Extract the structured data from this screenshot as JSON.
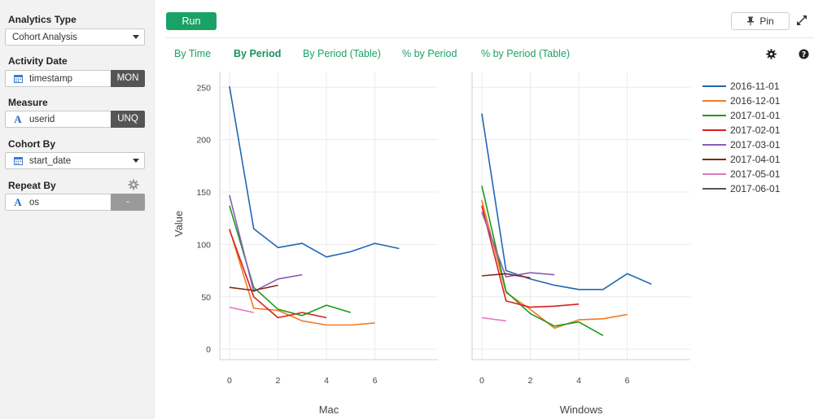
{
  "sidebar": {
    "analytics_type": {
      "label": "Analytics Type",
      "value": "Cohort Analysis"
    },
    "activity_date": {
      "label": "Activity Date",
      "value": "timestamp",
      "tag": "MON"
    },
    "measure": {
      "label": "Measure",
      "value": "userid",
      "tag": "UNQ"
    },
    "cohort_by": {
      "label": "Cohort By",
      "value": "start_date"
    },
    "repeat_by": {
      "label": "Repeat By",
      "value": "os",
      "tag": "-"
    }
  },
  "toolbar": {
    "run_label": "Run",
    "pin_label": "Pin"
  },
  "tabs": [
    {
      "label": "By Time",
      "active": false
    },
    {
      "label": "By Period",
      "active": true
    },
    {
      "label": "By Period (Table)",
      "active": false
    },
    {
      "label": "% by Period",
      "active": false
    },
    {
      "label": "% by Period (Table)",
      "active": false
    }
  ],
  "chart_data": {
    "type": "line",
    "ylabel": "Value",
    "ylim": [
      -10,
      265
    ],
    "xlim": [
      -0.4,
      8.6
    ],
    "x_ticks": [
      0,
      2,
      4,
      6
    ],
    "y_ticks": [
      0,
      50,
      100,
      150,
      200,
      250
    ],
    "grid": true,
    "legend_position": "right",
    "series": [
      {
        "name": "2016-11-01",
        "color": "#1f67b4"
      },
      {
        "name": "2016-12-01",
        "color": "#f47a1f"
      },
      {
        "name": "2017-01-01",
        "color": "#1b9a1b"
      },
      {
        "name": "2017-02-01",
        "color": "#d62020"
      },
      {
        "name": "2017-03-01",
        "color": "#8a5cb8"
      },
      {
        "name": "2017-04-01",
        "color": "#7a2a1a"
      },
      {
        "name": "2017-05-01",
        "color": "#e377c2"
      },
      {
        "name": "2017-06-01",
        "color": "#555555"
      }
    ],
    "panels": [
      {
        "name": "Mac",
        "lines": [
          {
            "series": "2016-11-01",
            "values": [
              251,
              115,
              97,
              101,
              88,
              93,
              101,
              96
            ]
          },
          {
            "series": "2016-12-01",
            "values": [
              115,
              39,
              37,
              27,
              23,
              23,
              25
            ]
          },
          {
            "series": "2017-01-01",
            "values": [
              137,
              59,
              38,
              32,
              42,
              35
            ]
          },
          {
            "series": "2017-02-01",
            "values": [
              114,
              50,
              30,
              35,
              30
            ]
          },
          {
            "series": "2017-03-01",
            "values": [
              147,
              55,
              67,
              71
            ]
          },
          {
            "series": "2017-04-01",
            "values": [
              59,
              56,
              61
            ]
          },
          {
            "series": "2017-05-01",
            "values": [
              40,
              35
            ]
          }
        ]
      },
      {
        "name": "Windows",
        "lines": [
          {
            "series": "2016-11-01",
            "values": [
              225,
              75,
              67,
              61,
              57,
              57,
              72,
              62
            ]
          },
          {
            "series": "2016-12-01",
            "values": [
              142,
              54,
              38,
              20,
              28,
              29,
              33
            ]
          },
          {
            "series": "2017-01-01",
            "values": [
              156,
              55,
              34,
              22,
              26,
              13
            ]
          },
          {
            "series": "2017-02-01",
            "values": [
              137,
              46,
              40,
              41,
              43
            ]
          },
          {
            "series": "2017-03-01",
            "values": [
              131,
              69,
              73,
              71
            ]
          },
          {
            "series": "2017-04-01",
            "values": [
              70,
              72,
              68
            ]
          },
          {
            "series": "2017-05-01",
            "values": [
              30,
              27
            ]
          }
        ]
      }
    ]
  }
}
